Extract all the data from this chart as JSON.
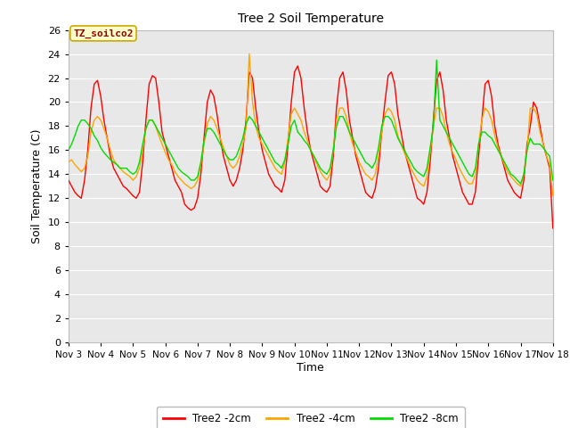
{
  "title": "Tree 2 Soil Temperature",
  "xlabel": "Time",
  "ylabel": "Soil Temperature (C)",
  "ylim": [
    0,
    26
  ],
  "yticks": [
    0,
    2,
    4,
    6,
    8,
    10,
    12,
    14,
    16,
    18,
    20,
    22,
    24,
    26
  ],
  "xtick_labels": [
    "Nov 3",
    "Nov 4",
    "Nov 5",
    "Nov 6",
    "Nov 7",
    "Nov 8",
    "Nov 9",
    "Nov 10",
    "Nov 11",
    "Nov 12",
    "Nov 13",
    "Nov 14",
    "Nov 15",
    "Nov 16",
    "Nov 17",
    "Nov 18"
  ],
  "series_colors": [
    "#ff0000",
    "#ffa500",
    "#00dd00"
  ],
  "series_labels": [
    "Tree2 -2cm",
    "Tree2 -4cm",
    "Tree2 -8cm"
  ],
  "annotation_text": "TZ_soilco2",
  "annotation_color": "#990000",
  "annotation_bg": "#ffffcc",
  "annotation_border": "#ccaa00",
  "line_width": 1.0,
  "time": [
    3.0,
    3.1,
    3.2,
    3.3,
    3.4,
    3.5,
    3.6,
    3.7,
    3.8,
    3.9,
    4.0,
    4.1,
    4.2,
    4.3,
    4.4,
    4.5,
    4.6,
    4.7,
    4.8,
    4.9,
    5.0,
    5.1,
    5.2,
    5.3,
    5.4,
    5.5,
    5.6,
    5.7,
    5.8,
    5.9,
    6.0,
    6.1,
    6.2,
    6.3,
    6.4,
    6.5,
    6.6,
    6.7,
    6.8,
    6.9,
    7.0,
    7.1,
    7.2,
    7.3,
    7.4,
    7.5,
    7.6,
    7.7,
    7.8,
    7.9,
    8.0,
    8.1,
    8.2,
    8.3,
    8.4,
    8.5,
    8.6,
    8.7,
    8.8,
    8.9,
    9.0,
    9.1,
    9.2,
    9.3,
    9.4,
    9.5,
    9.6,
    9.7,
    9.8,
    9.9,
    10.0,
    10.1,
    10.2,
    10.3,
    10.4,
    10.5,
    10.6,
    10.7,
    10.8,
    10.9,
    11.0,
    11.1,
    11.2,
    11.3,
    11.4,
    11.5,
    11.6,
    11.7,
    11.8,
    11.9,
    12.0,
    12.1,
    12.2,
    12.3,
    12.4,
    12.5,
    12.6,
    12.7,
    12.8,
    12.9,
    13.0,
    13.1,
    13.2,
    13.3,
    13.4,
    13.5,
    13.6,
    13.7,
    13.8,
    13.9,
    14.0,
    14.1,
    14.2,
    14.3,
    14.4,
    14.5,
    14.6,
    14.7,
    14.8,
    14.9,
    15.0,
    15.1,
    15.2,
    15.3,
    15.4,
    15.5,
    15.6,
    15.7,
    15.8,
    15.9,
    16.0,
    16.1,
    16.2,
    16.3,
    16.4,
    16.5,
    16.6,
    16.7,
    16.8,
    16.9,
    17.0,
    17.1,
    17.2,
    17.3,
    17.4,
    17.5,
    17.6,
    17.7,
    17.8,
    17.9,
    18.0
  ],
  "vals_2cm": [
    13.5,
    13.0,
    12.5,
    12.2,
    12.0,
    13.5,
    16.0,
    19.5,
    21.5,
    21.8,
    20.5,
    18.5,
    17.0,
    15.5,
    14.5,
    14.0,
    13.5,
    13.0,
    12.8,
    12.5,
    12.2,
    12.0,
    12.5,
    15.0,
    18.5,
    21.5,
    22.2,
    22.0,
    20.0,
    17.5,
    16.5,
    15.5,
    14.5,
    13.5,
    13.0,
    12.5,
    11.5,
    11.2,
    11.0,
    11.2,
    12.0,
    14.0,
    17.0,
    20.0,
    21.0,
    20.5,
    19.0,
    17.0,
    15.5,
    14.5,
    13.5,
    13.0,
    13.5,
    14.5,
    16.0,
    18.5,
    22.5,
    22.0,
    19.5,
    17.5,
    16.0,
    15.0,
    14.0,
    13.5,
    13.0,
    12.8,
    12.5,
    13.5,
    16.5,
    20.0,
    22.5,
    23.0,
    22.0,
    19.5,
    17.5,
    16.0,
    15.0,
    14.0,
    13.0,
    12.7,
    12.5,
    13.0,
    15.5,
    19.5,
    22.0,
    22.5,
    21.0,
    18.5,
    17.0,
    15.5,
    14.5,
    13.5,
    12.5,
    12.2,
    12.0,
    12.8,
    14.5,
    17.5,
    20.0,
    22.2,
    22.5,
    21.5,
    19.0,
    17.5,
    16.0,
    15.0,
    14.0,
    13.0,
    12.0,
    11.8,
    11.5,
    12.5,
    15.0,
    18.5,
    21.8,
    22.5,
    21.0,
    18.5,
    17.0,
    15.5,
    14.5,
    13.5,
    12.5,
    12.0,
    11.5,
    11.5,
    12.5,
    15.5,
    18.5,
    21.5,
    21.8,
    20.5,
    18.0,
    16.5,
    15.5,
    14.5,
    13.5,
    13.0,
    12.5,
    12.2,
    12.0,
    13.5,
    16.5,
    18.0,
    20.0,
    19.5,
    18.0,
    16.5,
    15.5,
    14.5,
    9.5
  ],
  "vals_4cm": [
    15.0,
    15.2,
    14.8,
    14.5,
    14.2,
    14.5,
    15.5,
    17.5,
    18.5,
    18.8,
    18.5,
    17.8,
    17.0,
    16.0,
    15.2,
    14.8,
    14.5,
    14.2,
    14.0,
    13.8,
    13.5,
    13.8,
    14.5,
    16.0,
    17.8,
    18.5,
    18.5,
    18.0,
    17.2,
    16.5,
    15.8,
    15.2,
    14.8,
    14.2,
    13.8,
    13.5,
    13.2,
    13.0,
    12.8,
    13.0,
    13.5,
    14.8,
    16.5,
    18.2,
    18.8,
    18.5,
    17.8,
    17.0,
    16.2,
    15.5,
    14.8,
    14.5,
    14.8,
    15.5,
    16.5,
    17.8,
    24.0,
    20.0,
    18.0,
    17.0,
    16.5,
    16.0,
    15.5,
    15.0,
    14.5,
    14.2,
    14.0,
    15.0,
    17.0,
    19.0,
    19.5,
    19.0,
    18.5,
    17.5,
    16.8,
    16.0,
    15.5,
    14.8,
    14.2,
    13.8,
    13.5,
    14.0,
    16.0,
    18.5,
    19.5,
    19.5,
    18.8,
    17.5,
    16.5,
    15.8,
    15.0,
    14.5,
    14.0,
    13.8,
    13.5,
    14.0,
    15.5,
    17.5,
    19.0,
    19.5,
    19.2,
    18.5,
    17.2,
    16.5,
    15.8,
    15.2,
    14.5,
    14.0,
    13.5,
    13.2,
    13.0,
    13.8,
    15.8,
    18.0,
    19.5,
    19.5,
    18.8,
    17.5,
    16.5,
    15.8,
    15.2,
    14.5,
    14.0,
    13.5,
    13.2,
    13.2,
    14.0,
    16.5,
    18.5,
    19.5,
    19.2,
    18.5,
    17.2,
    16.2,
    15.5,
    14.8,
    14.2,
    13.8,
    13.5,
    13.2,
    13.0,
    14.0,
    16.0,
    19.5,
    19.5,
    19.0,
    17.5,
    16.5,
    15.5,
    14.8,
    12.2
  ],
  "vals_8cm": [
    16.0,
    16.5,
    17.2,
    18.0,
    18.5,
    18.5,
    18.2,
    17.8,
    17.2,
    16.8,
    16.2,
    15.8,
    15.5,
    15.2,
    15.0,
    14.8,
    14.5,
    14.5,
    14.5,
    14.2,
    14.0,
    14.2,
    15.0,
    16.5,
    17.8,
    18.5,
    18.5,
    18.0,
    17.5,
    17.0,
    16.5,
    16.0,
    15.5,
    15.0,
    14.5,
    14.2,
    14.0,
    13.8,
    13.5,
    13.5,
    13.8,
    15.0,
    16.8,
    17.8,
    17.8,
    17.5,
    17.0,
    16.5,
    16.0,
    15.5,
    15.2,
    15.2,
    15.5,
    16.2,
    17.0,
    18.2,
    18.8,
    18.5,
    18.0,
    17.5,
    17.0,
    16.5,
    16.0,
    15.5,
    15.0,
    14.8,
    14.5,
    15.2,
    16.5,
    18.0,
    18.5,
    17.5,
    17.2,
    16.8,
    16.5,
    16.0,
    15.5,
    15.0,
    14.5,
    14.2,
    14.0,
    14.5,
    16.0,
    18.0,
    18.8,
    18.8,
    18.2,
    17.5,
    17.0,
    16.5,
    16.0,
    15.5,
    15.0,
    14.8,
    14.5,
    15.0,
    16.2,
    18.0,
    18.8,
    18.8,
    18.5,
    17.8,
    17.0,
    16.5,
    16.0,
    15.5,
    15.0,
    14.5,
    14.2,
    14.0,
    13.8,
    14.5,
    16.2,
    18.0,
    23.5,
    18.5,
    18.0,
    17.5,
    17.0,
    16.5,
    16.0,
    15.5,
    15.0,
    14.5,
    14.0,
    13.8,
    14.5,
    16.5,
    17.5,
    17.5,
    17.2,
    17.0,
    16.5,
    16.0,
    15.5,
    15.0,
    14.5,
    14.0,
    13.8,
    13.5,
    13.2,
    14.0,
    16.0,
    17.0,
    16.5,
    16.5,
    16.5,
    16.2,
    15.8,
    15.5,
    13.5
  ]
}
